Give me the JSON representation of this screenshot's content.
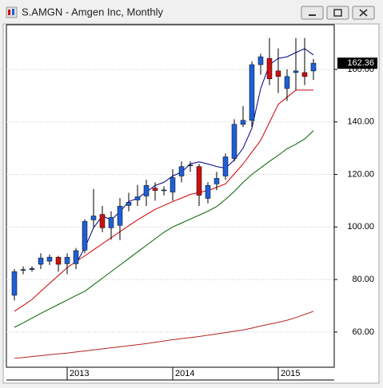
{
  "chart_data": {
    "type": "candlestick",
    "title": "S.AMGN - Amgen Inc, Monthly",
    "categories": [
      null,
      null,
      null,
      null,
      null,
      null,
      "2013",
      null,
      null,
      null,
      null,
      null,
      null,
      null,
      null,
      null,
      null,
      null,
      "2014",
      null,
      null,
      null,
      null,
      null,
      null,
      null,
      null,
      null,
      null,
      null,
      "2015",
      null,
      null,
      null,
      null
    ],
    "open": [
      74,
      83.5,
      83.8,
      85.8,
      87,
      88.5,
      86,
      86,
      91.2,
      102.7,
      104.8,
      99.7,
      100.6,
      108.2,
      110.3,
      111.8,
      114.8,
      113.9,
      113.3,
      119.4,
      123.3,
      123,
      110.9,
      116.4,
      119.4,
      126.1,
      139.1,
      140.6,
      161.8,
      164.2,
      159.4,
      152.7,
      158.8,
      158.8,
      159.4
    ],
    "high": [
      84,
      85,
      85,
      90,
      89.5,
      89,
      90,
      92,
      103,
      114.5,
      108,
      106,
      111,
      113,
      116,
      118,
      117,
      115.5,
      122,
      125,
      125,
      124,
      117,
      121,
      128,
      141,
      146,
      163,
      166,
      172,
      168,
      160,
      172,
      172,
      164
    ],
    "low": [
      72,
      82,
      83,
      84,
      85.5,
      83,
      82,
      84,
      90,
      100,
      98,
      95.2,
      95,
      106,
      108,
      108,
      110,
      112,
      110,
      117,
      121,
      108,
      109,
      114,
      118,
      125,
      138,
      138,
      158,
      154,
      151,
      148,
      152,
      154,
      156
    ],
    "close": [
      83,
      83.8,
      84.2,
      88.2,
      88.5,
      85.8,
      88.5,
      91,
      102.1,
      104.2,
      99.7,
      103.6,
      107.9,
      109.4,
      111.5,
      115.8,
      113.9,
      114.1,
      118.8,
      123,
      123.6,
      112.1,
      115.8,
      118.5,
      126.7,
      139.1,
      140.6,
      161.8,
      164.8,
      156.4,
      157.3,
      157.3,
      159.4,
      157.3,
      162.36
    ],
    "up_color": "#1f5fd6",
    "down_color": "#cc1111",
    "lines": [
      {
        "color": "#00008b",
        "values": [
          null,
          null,
          null,
          null,
          null,
          null,
          null,
          86,
          92,
          99.7,
          104.2,
          102.7,
          105.8,
          109.7,
          110.9,
          113.3,
          115.8,
          117,
          119.4,
          120.9,
          124,
          124.8,
          124,
          123,
          122.4,
          125.5,
          130,
          137.6,
          152.7,
          161.8,
          164.2,
          164.8,
          166.4,
          167.9,
          165.5
        ]
      },
      {
        "color": "#cc0000",
        "values": [
          67.9,
          70.1,
          72.4,
          75.5,
          78.5,
          81.5,
          84.5,
          86.8,
          89,
          91.3,
          93.6,
          95.9,
          98.2,
          100.5,
          102.7,
          104.7,
          106.7,
          108.2,
          109.7,
          111,
          112.4,
          113.1,
          113.9,
          115.1,
          116.4,
          120.2,
          124,
          128.5,
          133,
          139.8,
          146.7,
          149.4,
          152.1,
          152.1,
          152.1
        ]
      },
      {
        "color": "#006400",
        "values": [
          61.8,
          63.5,
          65.3,
          67.1,
          68.8,
          70.5,
          72.2,
          73.9,
          75.5,
          78,
          80.5,
          83,
          85.5,
          88,
          90.5,
          93,
          95.5,
          98,
          100,
          101.5,
          103,
          104.5,
          106,
          107.8,
          110.5,
          113.5,
          117,
          120,
          122.5,
          125,
          127.3,
          129.8,
          131.5,
          133.5,
          136.7
        ]
      },
      {
        "color": "#b22222",
        "values": [
          50,
          50.3,
          50.7,
          51,
          51.4,
          51.7,
          52,
          52.4,
          52.8,
          53.2,
          53.6,
          54,
          54.4,
          54.8,
          55.2,
          55.6,
          56.1,
          56.6,
          57.1,
          57.5,
          57.9,
          58.3,
          58.8,
          59.3,
          59.8,
          60.3,
          60.8,
          61.5,
          62.3,
          63,
          63.7,
          64.5,
          65.5,
          66.7,
          67.9
        ]
      }
    ],
    "last_price": 162.36,
    "ylim": [
      46.6,
      177.0
    ],
    "yticks": [
      {
        "value": 60,
        "label": "60.00"
      },
      {
        "value": 80,
        "label": "80.00"
      },
      {
        "value": 100,
        "label": "100.00"
      },
      {
        "value": 120,
        "label": "120.00"
      },
      {
        "value": 140,
        "label": "140.00"
      },
      {
        "value": 160,
        "label": "160.00"
      }
    ],
    "grid": true
  }
}
